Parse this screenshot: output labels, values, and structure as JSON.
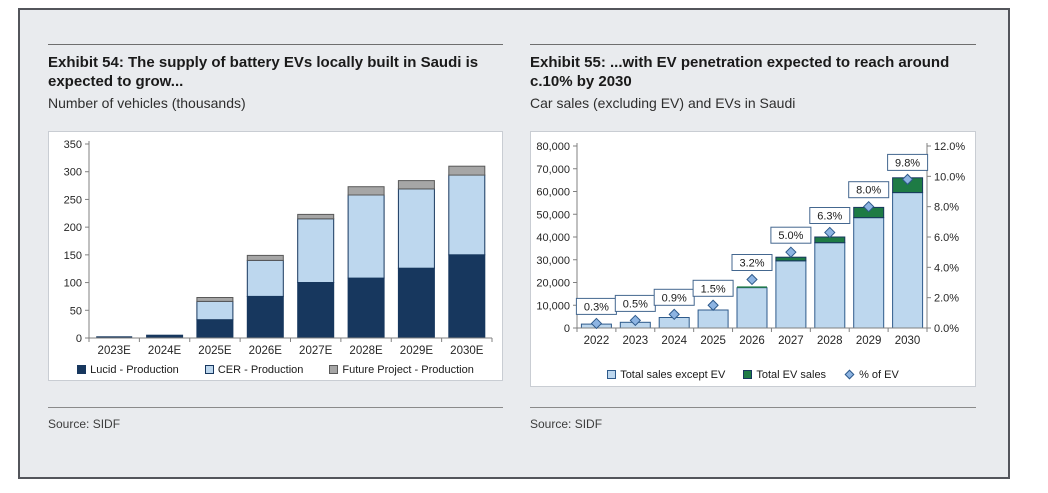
{
  "panels": [
    {
      "title": "Exhibit 54: The supply of battery EVs locally built in Saudi is expected to grow...",
      "subtitle": "Number of vehicles (thousands)",
      "source": "Source: SIDF"
    },
    {
      "title": "Exhibit 55: ...with EV penetration expected to reach around c.10% by 2030",
      "subtitle": "Car sales (excluding EV) and EVs in Saudi",
      "source": "Source: SIDF"
    }
  ],
  "colors": {
    "navy": "#17375E",
    "light_blue": "#BDD7EE",
    "blue_border": "#2E5A8B",
    "gray": "#A6A6A6",
    "gray_border": "#595959",
    "green": "#1E7B45",
    "diamond_fill": "#8DB4E2",
    "axis_line": "#808080",
    "label_box_border": "#44678F"
  },
  "chart_data": [
    {
      "type": "bar",
      "stacked": true,
      "title": "Exhibit 54: The supply of battery EVs locally built in Saudi is expected to grow...",
      "ylabel": "Number of vehicles (thousands)",
      "categories": [
        "2023E",
        "2024E",
        "2025E",
        "2026E",
        "2027E",
        "2028E",
        "2029E",
        "2030E"
      ],
      "series": [
        {
          "name": "Lucid - Production",
          "color": "#17375E",
          "border": "#17375E",
          "values": [
            3,
            5,
            33,
            75,
            100,
            108,
            126,
            150
          ]
        },
        {
          "name": "CER - Production",
          "color": "#BDD7EE",
          "border": "#17375E",
          "values": [
            0,
            0,
            33,
            65,
            115,
            150,
            143,
            144
          ]
        },
        {
          "name": "Future Project - Production",
          "color": "#A6A6A6",
          "border": "#595959",
          "values": [
            0,
            0,
            7,
            9,
            8,
            15,
            15,
            16
          ]
        }
      ],
      "ylim": [
        0,
        350
      ],
      "ytick_step": 50,
      "grid": false,
      "legend_position": "bottom"
    },
    {
      "type": "bar",
      "subtype": "combo-bar-scatter",
      "stacked": true,
      "title": "Exhibit 55: ...with EV penetration expected to reach around c.10% by 2030",
      "ylabel": "Car sales (excluding EV) and EVs in Saudi",
      "categories": [
        "2022",
        "2023",
        "2024",
        "2025",
        "2026",
        "2027",
        "2028",
        "2029",
        "2030"
      ],
      "bar_series": [
        {
          "name": "Total sales except EV",
          "color": "#BDD7EE",
          "border": "#2E5A8B",
          "values": [
            1700,
            2500,
            4600,
            7900,
            17700,
            29500,
            37500,
            48500,
            59500
          ]
        },
        {
          "name": "Total EV sales",
          "color": "#1E7B45",
          "border": "#17375E",
          "values": [
            5,
            13,
            41,
            120,
            600,
            1600,
            2500,
            4500,
            6500
          ]
        }
      ],
      "line_series": {
        "name": "% of EV",
        "marker": "diamond",
        "axis": "right",
        "color": "#8DB4E2",
        "border": "#2E5A8B",
        "values": [
          0.3,
          0.5,
          0.9,
          1.5,
          3.2,
          5.0,
          6.3,
          8.0,
          9.8
        ],
        "labels": [
          "0.3%",
          "0.5%",
          "0.9%",
          "1.5%",
          "3.2%",
          "5.0%",
          "6.3%",
          "8.0%",
          "9.8%"
        ]
      },
      "ylim_left": [
        0,
        80000
      ],
      "ytick_step_left": 10000,
      "ylim_right": [
        0,
        12
      ],
      "ytick_step_right": 2,
      "grid": false,
      "legend_position": "bottom"
    }
  ]
}
